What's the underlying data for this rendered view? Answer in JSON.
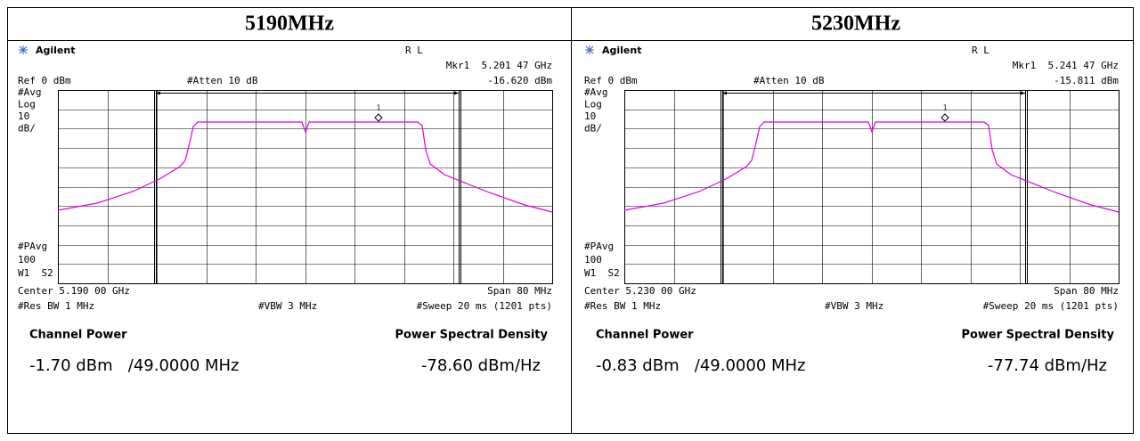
{
  "panels": [
    {
      "title": "5190MHz",
      "brand": "Agilent",
      "mode": "R L",
      "marker": "Mkr1  5.201 47 GHz",
      "ref": "Ref 0 dBm",
      "atten": "#Atten 10 dB",
      "marker_level": "-16.620 dBm",
      "left_labels": [
        "#Avg",
        "Log",
        "10",
        "dB/"
      ],
      "left_labels_low": [
        "#PAvg",
        "100",
        "W1  S2"
      ],
      "marker_id": "1",
      "center": "Center 5.190 00 GHz",
      "span": "Span 80 MHz",
      "rbw": "#Res BW 1 MHz",
      "vbw": "#VBW 3 MHz",
      "sweep": "#Sweep 20 ms (1201 pts)",
      "cp_label": "Channel Power",
      "psd_label": "Power Spectral Density",
      "cp_value": "-1.70 dBm   /49.0000 MHz",
      "psd_value": "-78.60 dBm/Hz"
    },
    {
      "title": "5230MHz",
      "brand": "Agilent",
      "mode": "R L",
      "marker": "Mkr1  5.241 47 GHz",
      "ref": "Ref 0 dBm",
      "atten": "#Atten 10 dB",
      "marker_level": "-15.811 dBm",
      "left_labels": [
        "#Avg",
        "Log",
        "10",
        "dB/"
      ],
      "left_labels_low": [
        "#PAvg",
        "100",
        "W1  S2"
      ],
      "marker_id": "1",
      "center": "Center 5.230 00 GHz",
      "span": "Span 80 MHz",
      "rbw": "#Res BW 1 MHz",
      "vbw": "#VBW 3 MHz",
      "sweep": "#Sweep 20 ms (1201 pts)",
      "cp_label": "Channel Power",
      "psd_label": "Power Spectral Density",
      "cp_value": "-0.83 dBm   /49.0000 MHz",
      "psd_value": "-77.74 dBm/Hz"
    }
  ]
}
